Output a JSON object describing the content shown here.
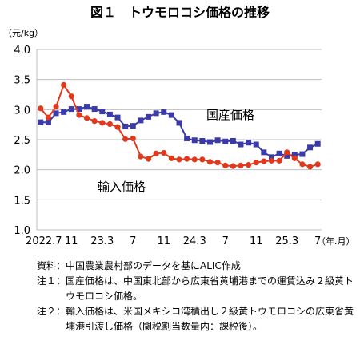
{
  "chart_data": {
    "type": "line",
    "title": "図１　トウモロコシ価格の推移",
    "yunit": "（元/kg）",
    "xunit": "（年.月）",
    "ylim": [
      1.0,
      4.0
    ],
    "yticks": [
      "4.0",
      "3.5",
      "3.0",
      "2.5",
      "2.0",
      "1.5",
      "1.0"
    ],
    "xticks": [
      {
        "i": 0,
        "label": "2022.7"
      },
      {
        "i": 4,
        "label": "11"
      },
      {
        "i": 8,
        "label": "23.3"
      },
      {
        "i": 12,
        "label": "7"
      },
      {
        "i": 16,
        "label": "11"
      },
      {
        "i": 20,
        "label": "24.3"
      },
      {
        "i": 24,
        "label": "7"
      },
      {
        "i": 28,
        "label": "11"
      },
      {
        "i": 32,
        "label": "25.3"
      },
      {
        "i": 36,
        "label": "7"
      }
    ],
    "x": [
      "2022.7",
      "2022.8",
      "2022.9",
      "2022.10",
      "2022.11",
      "2022.12",
      "2023.1",
      "2023.2",
      "2023.3",
      "2023.4",
      "2023.5",
      "2023.6",
      "2023.7",
      "2023.8",
      "2023.9",
      "2023.10",
      "2023.11",
      "2023.12",
      "2024.1",
      "2024.2",
      "2024.3",
      "2024.4",
      "2024.5",
      "2024.6",
      "2024.7",
      "2024.8",
      "2024.9",
      "2024.10",
      "2024.11",
      "2024.12",
      "2025.1",
      "2025.2",
      "2025.3",
      "2025.4",
      "2025.5",
      "2025.6",
      "2025.7"
    ],
    "grid": true,
    "series": [
      {
        "name": "国産価格",
        "color": "#3a3aa8",
        "marker": "square",
        "values": [
          2.79,
          2.79,
          2.94,
          2.96,
          3.01,
          3.01,
          3.05,
          3.01,
          2.97,
          2.92,
          2.87,
          2.72,
          2.73,
          2.82,
          2.88,
          2.94,
          2.96,
          2.91,
          2.78,
          2.52,
          2.49,
          2.48,
          2.46,
          2.49,
          2.47,
          2.48,
          2.42,
          2.45,
          2.42,
          2.29,
          2.21,
          2.27,
          2.23,
          2.25,
          2.26,
          2.37,
          2.43
        ]
      },
      {
        "name": "輸入価格",
        "color": "#e03a1e",
        "marker": "circle",
        "values": [
          3.02,
          2.87,
          3.05,
          3.41,
          3.22,
          2.91,
          2.86,
          2.81,
          2.78,
          2.76,
          2.71,
          2.51,
          2.52,
          2.22,
          2.18,
          2.27,
          2.28,
          2.19,
          2.17,
          2.18,
          2.17,
          2.17,
          2.13,
          2.12,
          2.07,
          2.06,
          2.07,
          2.08,
          2.12,
          2.14,
          2.15,
          2.15,
          2.29,
          2.19,
          2.09,
          2.05,
          2.09
        ]
      }
    ],
    "annotations": [
      {
        "text": "国産価格",
        "series": 0
      },
      {
        "text": "輸入価格",
        "series": 1
      }
    ]
  },
  "notes": [
    {
      "label": "資料：",
      "text": "中国農業農村部のデータを基にALIC作成"
    },
    {
      "label": "注１：",
      "text": "国産価格は、中国東北部から広東省黄埔港までの運賃込み２級黄トウモロコシ価格。"
    },
    {
      "label": "注２：",
      "text": "輸入価格は、米国メキシコ湾積出し２級黄トウモロコシの広東省黄埔港引渡し価格（関税割当数量内：課税後）。"
    }
  ]
}
